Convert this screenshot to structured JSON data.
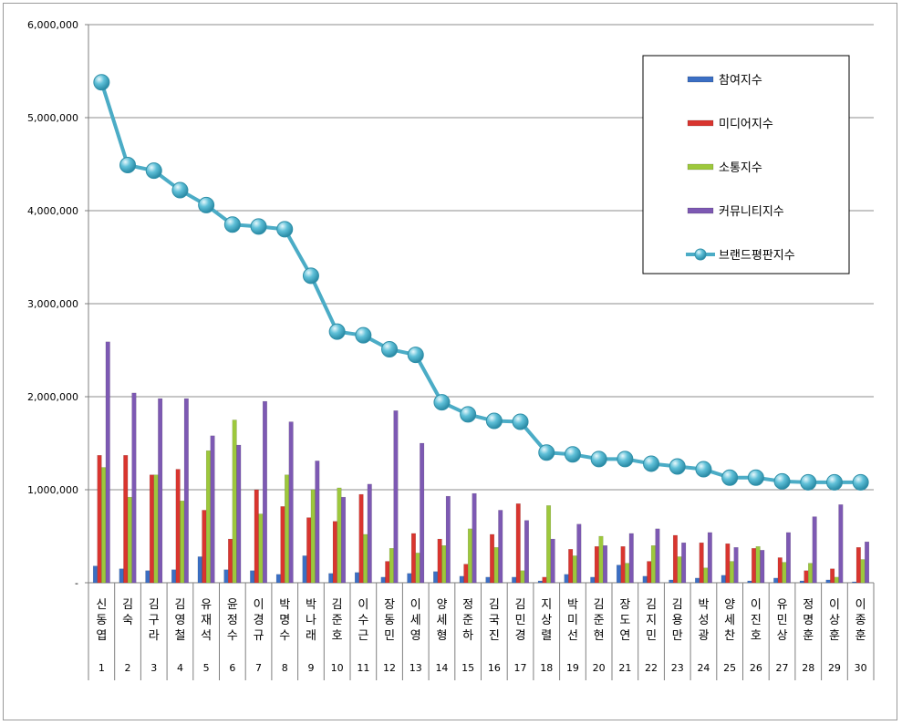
{
  "chart_data": {
    "type": "bar",
    "title": "",
    "xlabel": "",
    "ylabel": "",
    "ylim": [
      0,
      6000000
    ],
    "ytick_values": [
      0,
      1000000,
      2000000,
      3000000,
      4000000,
      5000000,
      6000000
    ],
    "ytick_labels": [
      "-",
      "1,000,000",
      "2,000,000",
      "3,000,000",
      "4,000,000",
      "5,000,000",
      "6,000,000"
    ],
    "grid": true,
    "legend_position": "top-right",
    "categories": [
      "신동엽",
      "김숙",
      "김구라",
      "김영철",
      "유재석",
      "윤정수",
      "이경규",
      "박명수",
      "박나래",
      "김준호",
      "이수근",
      "장동민",
      "이세영",
      "양세형",
      "정준하",
      "김국진",
      "김민경",
      "지상렬",
      "박미선",
      "김준현",
      "장도연",
      "김지민",
      "김용만",
      "박성광",
      "양세찬",
      "이진호",
      "유민상",
      "정명훈",
      "이상훈",
      "이종훈"
    ],
    "ranks": [
      "1",
      "2",
      "3",
      "4",
      "5",
      "6",
      "7",
      "8",
      "9",
      "10",
      "11",
      "12",
      "13",
      "14",
      "15",
      "16",
      "17",
      "18",
      "19",
      "20",
      "21",
      "22",
      "23",
      "24",
      "25",
      "26",
      "27",
      "28",
      "29",
      "30"
    ],
    "series": [
      {
        "name": "참여지수",
        "type": "bar",
        "color": "#3b6fc4",
        "values": [
          180000,
          150000,
          130000,
          140000,
          280000,
          140000,
          130000,
          90000,
          290000,
          100000,
          110000,
          60000,
          100000,
          120000,
          70000,
          60000,
          60000,
          20000,
          90000,
          60000,
          190000,
          70000,
          30000,
          50000,
          80000,
          20000,
          50000,
          20000,
          30000,
          10000
        ]
      },
      {
        "name": "미디어지수",
        "type": "bar",
        "color": "#d9352f",
        "values": [
          1370000,
          1370000,
          1160000,
          1220000,
          780000,
          470000,
          1000000,
          820000,
          700000,
          660000,
          950000,
          230000,
          530000,
          470000,
          200000,
          520000,
          850000,
          60000,
          360000,
          390000,
          390000,
          230000,
          510000,
          430000,
          420000,
          370000,
          270000,
          130000,
          150000,
          380000
        ]
      },
      {
        "name": "소통지수",
        "type": "bar",
        "color": "#9dc83c",
        "values": [
          1240000,
          920000,
          1160000,
          880000,
          1420000,
          1750000,
          740000,
          1160000,
          1000000,
          1020000,
          520000,
          370000,
          320000,
          400000,
          580000,
          380000,
          130000,
          830000,
          290000,
          500000,
          210000,
          400000,
          280000,
          160000,
          230000,
          390000,
          220000,
          210000,
          60000,
          250000
        ]
      },
      {
        "name": "커뮤니티지수",
        "type": "bar",
        "color": "#7d59b3",
        "values": [
          2590000,
          2040000,
          1980000,
          1980000,
          1580000,
          1480000,
          1950000,
          1730000,
          1310000,
          920000,
          1060000,
          1850000,
          1500000,
          930000,
          960000,
          780000,
          670000,
          470000,
          630000,
          400000,
          530000,
          580000,
          430000,
          540000,
          380000,
          350000,
          540000,
          710000,
          840000,
          440000
        ]
      },
      {
        "name": "브랜드평판지수",
        "type": "line",
        "color": "#4bacc6",
        "values": [
          5380000,
          4490000,
          4430000,
          4220000,
          4060000,
          3850000,
          3830000,
          3800000,
          3300000,
          2700000,
          2660000,
          2510000,
          2450000,
          1940000,
          1810000,
          1740000,
          1730000,
          1400000,
          1380000,
          1330000,
          1330000,
          1280000,
          1250000,
          1220000,
          1130000,
          1130000,
          1090000,
          1080000,
          1080000,
          1080000
        ]
      }
    ]
  }
}
